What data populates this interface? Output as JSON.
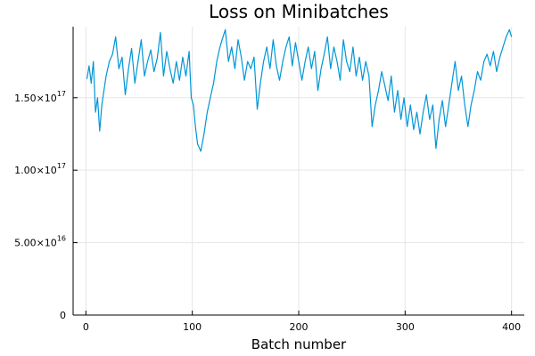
{
  "chart_data": {
    "type": "line",
    "title": "Loss on Minibatches",
    "xlabel": "Batch number",
    "ylabel": "",
    "xlim": [
      -12,
      412
    ],
    "ylim": [
      0,
      1.99e+17
    ],
    "grid": true,
    "legend": "none",
    "colors": {
      "series": "#0096d6"
    },
    "xticks": [
      {
        "value": 0,
        "label": "0"
      },
      {
        "value": 100,
        "label": "100"
      },
      {
        "value": 200,
        "label": "200"
      },
      {
        "value": 300,
        "label": "300"
      },
      {
        "value": 400,
        "label": "400"
      }
    ],
    "yticks": [
      {
        "value": 0,
        "base": "0",
        "exp": ""
      },
      {
        "value": 5e+16,
        "base": "5.00×10",
        "exp": "16"
      },
      {
        "value": 1e+17,
        "base": "1.00×10",
        "exp": "17"
      },
      {
        "value": 1.5e+17,
        "base": "1.50×10",
        "exp": "17"
      }
    ],
    "series": [
      {
        "x": [
          1,
          3,
          5,
          7,
          9,
          11,
          13,
          15,
          17,
          19,
          22,
          25,
          28,
          31,
          34,
          37,
          40,
          43,
          46,
          49,
          52,
          55,
          58,
          61,
          64,
          67,
          70,
          73,
          76,
          79,
          82,
          85,
          88,
          91,
          94,
          97,
          99,
          101,
          103,
          105,
          108,
          111,
          114,
          117,
          120,
          123,
          126,
          128,
          131,
          134,
          137,
          140,
          143,
          146,
          149,
          152,
          155,
          158,
          161,
          164,
          167,
          170,
          173,
          176,
          179,
          182,
          185,
          188,
          191,
          194,
          197,
          200,
          203,
          206,
          209,
          212,
          215,
          218,
          221,
          224,
          227,
          230,
          233,
          236,
          239,
          242,
          245,
          248,
          251,
          254,
          257,
          260,
          263,
          266,
          269,
          272,
          275,
          278,
          281,
          284,
          287,
          290,
          293,
          296,
          299,
          302,
          305,
          308,
          311,
          314,
          317,
          320,
          323,
          326,
          329,
          332,
          335,
          338,
          341,
          344,
          347,
          350,
          353,
          356,
          359,
          362,
          365,
          368,
          371,
          374,
          377,
          380,
          383,
          386,
          389,
          392,
          395,
          398,
          400
        ],
        "y": [
          1.63e+17,
          1.72e+17,
          1.6e+17,
          1.75e+17,
          1.4e+17,
          1.5e+17,
          1.27e+17,
          1.45e+17,
          1.55e+17,
          1.65e+17,
          1.75e+17,
          1.8e+17,
          1.92e+17,
          1.7e+17,
          1.78e+17,
          1.52e+17,
          1.7e+17,
          1.84e+17,
          1.6e+17,
          1.75e+17,
          1.9e+17,
          1.65e+17,
          1.75e+17,
          1.83e+17,
          1.68e+17,
          1.77e+17,
          1.95e+17,
          1.65e+17,
          1.82e+17,
          1.7e+17,
          1.6e+17,
          1.75e+17,
          1.62e+17,
          1.78e+17,
          1.65e+17,
          1.82e+17,
          1.5e+17,
          1.45e+17,
          1.3e+17,
          1.18e+17,
          1.13e+17,
          1.25e+17,
          1.4e+17,
          1.5e+17,
          1.6e+17,
          1.75e+17,
          1.85e+17,
          1.9e+17,
          1.97e+17,
          1.75e+17,
          1.85e+17,
          1.7e+17,
          1.9e+17,
          1.78e+17,
          1.62e+17,
          1.75e+17,
          1.7e+17,
          1.78e+17,
          1.42e+17,
          1.6e+17,
          1.75e+17,
          1.85e+17,
          1.7e+17,
          1.9e+17,
          1.72e+17,
          1.62e+17,
          1.75e+17,
          1.85e+17,
          1.92e+17,
          1.72e+17,
          1.88e+17,
          1.75e+17,
          1.62e+17,
          1.75e+17,
          1.85e+17,
          1.7e+17,
          1.82e+17,
          1.55e+17,
          1.7e+17,
          1.8e+17,
          1.92e+17,
          1.7e+17,
          1.85e+17,
          1.75e+17,
          1.62e+17,
          1.9e+17,
          1.75e+17,
          1.68e+17,
          1.85e+17,
          1.65e+17,
          1.78e+17,
          1.62e+17,
          1.75e+17,
          1.65e+17,
          1.3e+17,
          1.45e+17,
          1.55e+17,
          1.68e+17,
          1.58e+17,
          1.48e+17,
          1.65e+17,
          1.4e+17,
          1.55e+17,
          1.35e+17,
          1.5e+17,
          1.3e+17,
          1.45e+17,
          1.28e+17,
          1.4e+17,
          1.25e+17,
          1.4e+17,
          1.52e+17,
          1.35e+17,
          1.45e+17,
          1.15e+17,
          1.35e+17,
          1.48e+17,
          1.3e+17,
          1.45e+17,
          1.6e+17,
          1.75e+17,
          1.55e+17,
          1.65e+17,
          1.45e+17,
          1.3e+17,
          1.45e+17,
          1.55e+17,
          1.68e+17,
          1.62e+17,
          1.75e+17,
          1.8e+17,
          1.72e+17,
          1.82e+17,
          1.68e+17,
          1.78e+17,
          1.85e+17,
          1.92e+17,
          1.97e+17,
          1.92e+17
        ]
      }
    ]
  }
}
